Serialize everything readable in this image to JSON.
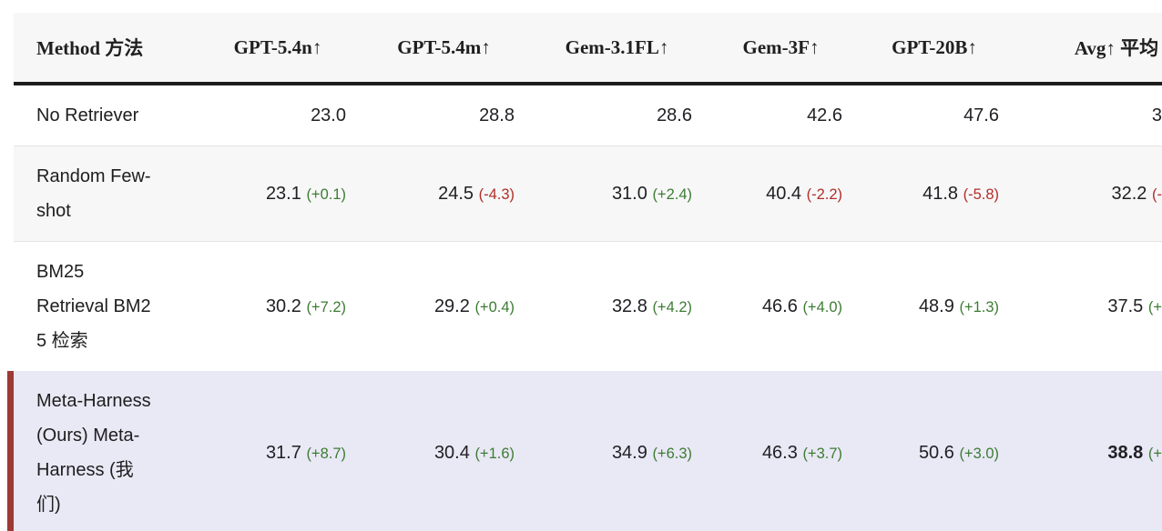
{
  "table": {
    "columns": [
      "Method 方法",
      "GPT-5.4n↑",
      "GPT-5.4m↑",
      "Gem-3.1FL↑",
      "Gem-3F↑",
      "GPT-20B↑",
      "Avg↑ 平均"
    ],
    "rows": [
      {
        "method": "No Retriever",
        "highlight": false,
        "cells": [
          {
            "v": "23.0",
            "d": ""
          },
          {
            "v": "28.8",
            "d": ""
          },
          {
            "v": "28.6",
            "d": ""
          },
          {
            "v": "42.6",
            "d": ""
          },
          {
            "v": "47.6",
            "d": ""
          },
          {
            "v": "3",
            "d": ""
          }
        ]
      },
      {
        "method": "Random Few-\nshot",
        "highlight": false,
        "cells": [
          {
            "v": "23.1",
            "d": "(+0.1)"
          },
          {
            "v": "24.5",
            "d": "(-4.3)"
          },
          {
            "v": "31.0",
            "d": "(+2.4)"
          },
          {
            "v": "40.4",
            "d": "(-2.2)"
          },
          {
            "v": "41.8",
            "d": "(-5.8)"
          },
          {
            "v": "32.2",
            "d": "(-"
          }
        ]
      },
      {
        "method": "BM25\nRetrieval BM2\n5 检索",
        "highlight": false,
        "cells": [
          {
            "v": "30.2",
            "d": "(+7.2)"
          },
          {
            "v": "29.2",
            "d": "(+0.4)"
          },
          {
            "v": "32.8",
            "d": "(+4.2)"
          },
          {
            "v": "46.6",
            "d": "(+4.0)"
          },
          {
            "v": "48.9",
            "d": "(+1.3)"
          },
          {
            "v": "37.5",
            "d": "(+"
          }
        ]
      },
      {
        "method": "Meta-Harness\n(Ours) Meta-\nHarness (我\n们)",
        "highlight": true,
        "cells": [
          {
            "v": "31.7",
            "d": "(+8.7)"
          },
          {
            "v": "30.4",
            "d": "(+1.6)"
          },
          {
            "v": "34.9",
            "d": "(+6.3)"
          },
          {
            "v": "46.3",
            "d": "(+3.7)"
          },
          {
            "v": "50.6",
            "d": "(+3.0)"
          },
          {
            "v": "38.8",
            "d": "(+",
            "b": true
          }
        ]
      }
    ]
  },
  "colors": {
    "positive_delta": "#3c7c33",
    "negative_delta": "#b22d29",
    "highlight_row_bg": "#e9e8f5",
    "highlight_accent_bar": "#9c3a34",
    "header_bg": "#f7f7f7",
    "zebra_row_bg": "#f7f7f7",
    "header_rule": "#1d1d1d",
    "text": "#1e1e1e"
  }
}
